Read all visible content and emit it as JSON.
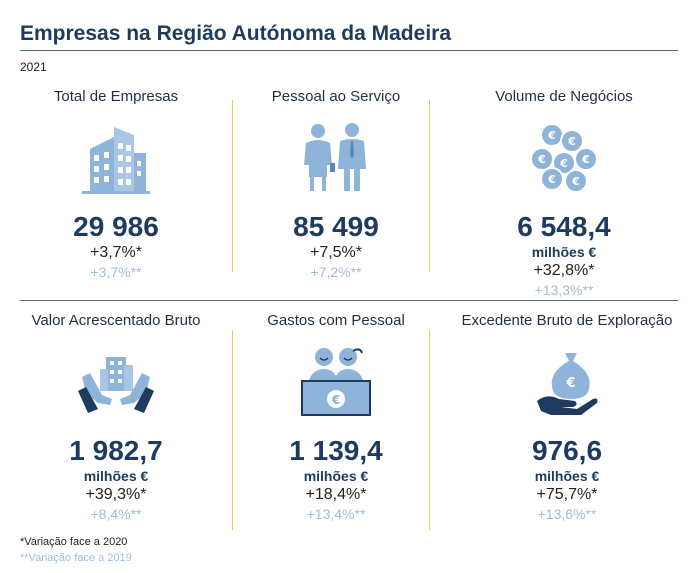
{
  "header": {
    "title": "Empresas na Região Autónoma da Madeira",
    "year": "2021"
  },
  "cards": [
    {
      "label": "Total de Empresas",
      "icon": "office-building-icon",
      "value": "29 986",
      "unit": "",
      "v2020": "+3,7%*",
      "v2019": "+3,7%**"
    },
    {
      "label": "Pessoal ao Serviço",
      "icon": "workers-icon",
      "value": "85 499",
      "unit": "",
      "v2020": "+7,5%*",
      "v2019": "+7,2%**"
    },
    {
      "label": "Volume de Negócios",
      "icon": "euro-coins-icon",
      "value": "6 548,4",
      "unit": "milhões €",
      "v2020": "+32,8%*",
      "v2019": "+13,3%**"
    },
    {
      "label": "Valor Acrescentado Bruto",
      "icon": "hands-building-icon",
      "value": "1 982,7",
      "unit": "milhões €",
      "v2020": "+39,3%*",
      "v2019": "+8,4%**"
    },
    {
      "label": "Gastos com Pessoal",
      "icon": "staff-desk-euro-icon",
      "value": "1 139,4",
      "unit": "milhões €",
      "v2020": "+18,4%*",
      "v2019": "+13,4%**"
    },
    {
      "label": "Excedente Bruto de Exploração",
      "icon": "hand-money-bag-icon",
      "value": "976,6",
      "unit": "milhões €",
      "v2020": "+75,7%*",
      "v2019": "+13,6%**"
    }
  ],
  "footnotes": {
    "n2020": "*Variação face a 2020",
    "n2019": "**Variação face a 2019"
  },
  "colors": {
    "navy": "#1f3a5f",
    "icon_blue": "#8fb4d9",
    "light_blue": "#9fbddb",
    "separator": "#e9cf5a"
  }
}
